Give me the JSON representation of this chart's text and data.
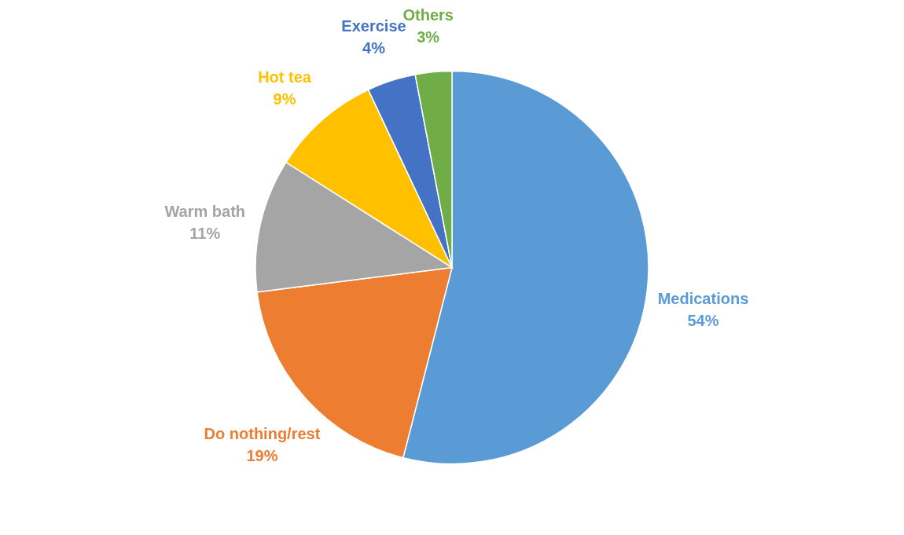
{
  "chart_data": {
    "type": "pie",
    "categories": [
      "Medications",
      "Do nothing/rest",
      "Warm bath",
      "Hot tea",
      "Exercise",
      "Others"
    ],
    "values": [
      54,
      19,
      11,
      9,
      4,
      3
    ],
    "colors": [
      "#5b9bd5",
      "#ed7d31",
      "#a5a5a5",
      "#ffc000",
      "#4472c4",
      "#70ad47"
    ],
    "value_labels": [
      "54%",
      "19%",
      "11%",
      "9%",
      "4%",
      "3%"
    ]
  }
}
